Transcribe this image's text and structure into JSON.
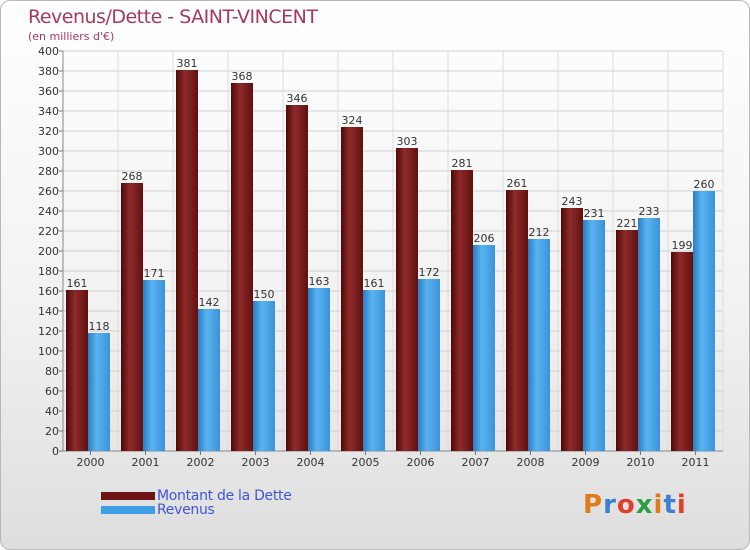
{
  "chart_data": {
    "type": "bar",
    "title": "Revenus/Dette - SAINT-VINCENT",
    "subtitle": "(en milliers d'€)",
    "categories": [
      "2000",
      "2001",
      "2002",
      "2003",
      "2004",
      "2005",
      "2006",
      "2007",
      "2008",
      "2009",
      "2010",
      "2011"
    ],
    "series": [
      {
        "name": "Montant de la Dette",
        "color": "#7a1c1c",
        "values": [
          161,
          268,
          381,
          368,
          346,
          324,
          303,
          281,
          261,
          243,
          221,
          199
        ]
      },
      {
        "name": "Revenus",
        "color": "#3f9ee6",
        "values": [
          118,
          171,
          142,
          150,
          163,
          161,
          172,
          206,
          212,
          231,
          233,
          260
        ]
      }
    ],
    "ylim": [
      0,
      400
    ],
    "ytick_step": 20,
    "grid": true,
    "legend": "bottom-left"
  },
  "logo": {
    "text": "Proxiti",
    "letter_colors": [
      "#e07b1a",
      "#3b7fd0",
      "#e0402a",
      "#2e9d45",
      "#e07b1a",
      "#3b7fd0",
      "#e0402a"
    ]
  }
}
